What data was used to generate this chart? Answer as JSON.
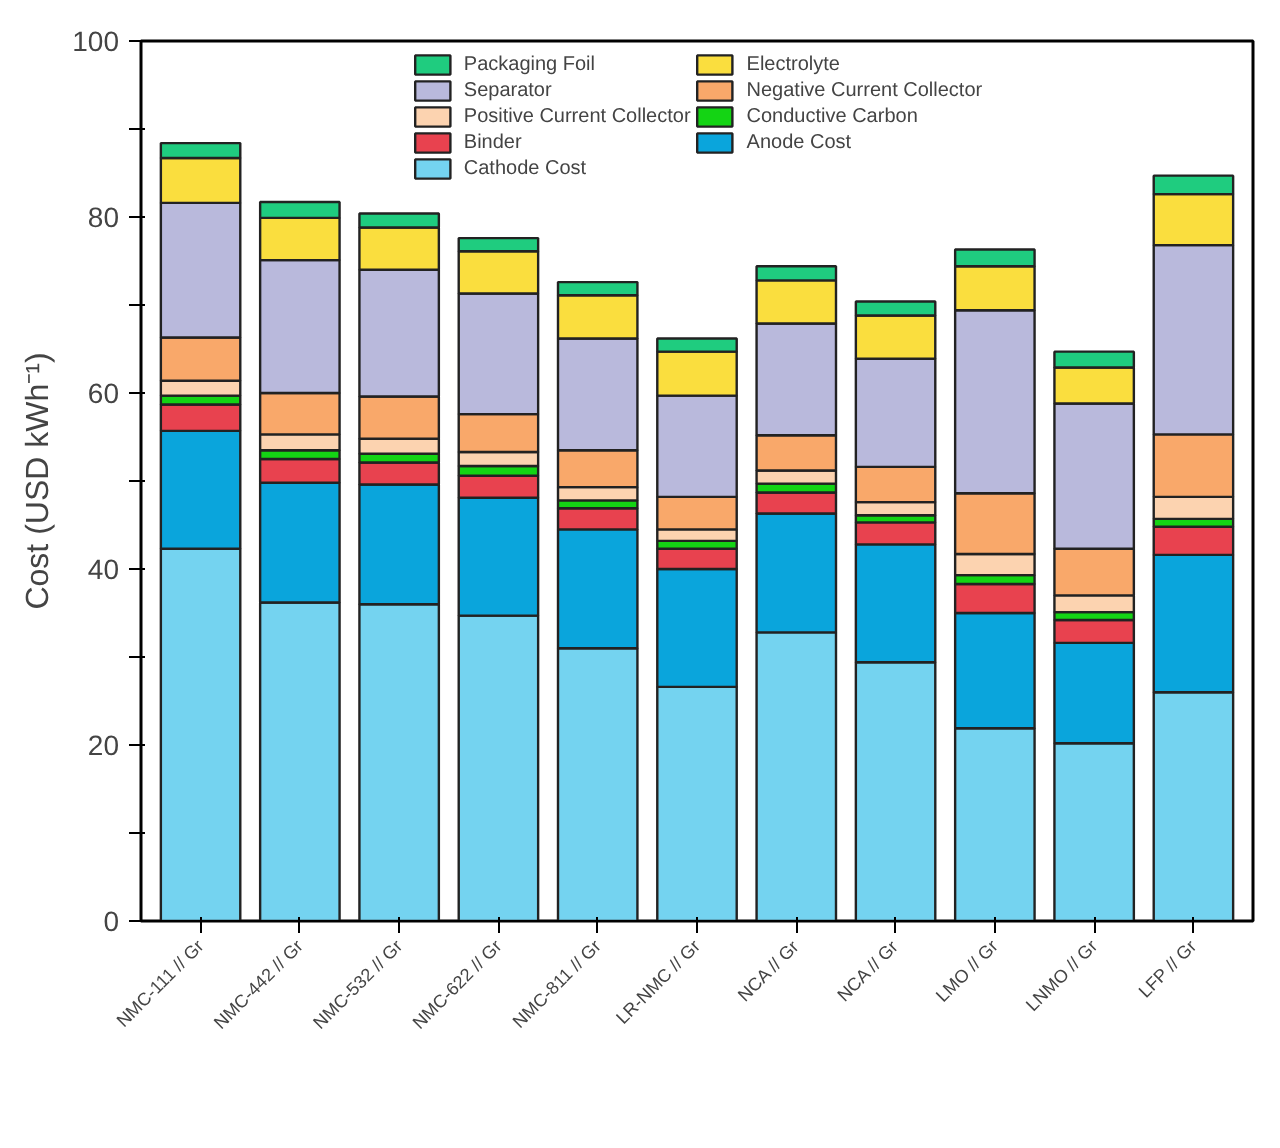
{
  "chart_data": {
    "type": "bar",
    "stacked": true,
    "ylabel": "Cost (USD kWh⁻¹)",
    "categories": [
      "NMC-111 // Gr",
      "NMC-442 // Gr",
      "NMC-532 // Gr",
      "NMC-622 // Gr",
      "NMC-811 // Gr",
      "LR-NMC // Gr",
      "NCA // Gr",
      "NCA // Gr",
      "LMO // Gr",
      "LNMO // Gr",
      "LFP // Gr"
    ],
    "series": [
      {
        "name": "Cathode Cost",
        "color": "#74d3f0",
        "values": [
          42.3,
          36.2,
          36.0,
          34.7,
          31.0,
          26.6,
          32.8,
          29.4,
          21.9,
          20.2,
          26.0
        ]
      },
      {
        "name": "Anode Cost",
        "color": "#0aa5dc",
        "values": [
          13.4,
          13.6,
          13.6,
          13.4,
          13.5,
          13.4,
          13.5,
          13.4,
          13.1,
          11.4,
          15.6
        ]
      },
      {
        "name": "Binder",
        "color": "#e8424f",
        "values": [
          3.0,
          2.7,
          2.5,
          2.5,
          2.4,
          2.3,
          2.4,
          2.5,
          3.3,
          2.6,
          3.2
        ]
      },
      {
        "name": "Conductive Carbon",
        "color": "#14d414",
        "values": [
          1.0,
          1.0,
          1.0,
          1.1,
          0.9,
          0.9,
          1.0,
          0.8,
          1.0,
          0.9,
          0.9
        ]
      },
      {
        "name": "Positive Current Collector",
        "color": "#fcd3b0",
        "values": [
          1.7,
          1.8,
          1.7,
          1.6,
          1.5,
          1.3,
          1.5,
          1.5,
          2.4,
          1.9,
          2.5
        ]
      },
      {
        "name": "Negative Current Collector",
        "color": "#f9a86a",
        "values": [
          4.9,
          4.7,
          4.8,
          4.3,
          4.2,
          3.7,
          4.0,
          4.0,
          6.9,
          5.3,
          7.1
        ]
      },
      {
        "name": "Separator",
        "color": "#b9b9dc",
        "values": [
          15.3,
          15.1,
          14.4,
          13.7,
          12.7,
          11.5,
          12.7,
          12.3,
          20.8,
          16.5,
          21.5
        ]
      },
      {
        "name": "Electrolyte",
        "color": "#fade3e",
        "values": [
          5.1,
          4.8,
          4.8,
          4.8,
          4.9,
          5.0,
          4.9,
          4.9,
          5.0,
          4.1,
          5.8
        ]
      },
      {
        "name": "Packaging Foil",
        "color": "#1fcc7f",
        "values": [
          1.7,
          1.8,
          1.6,
          1.5,
          1.5,
          1.5,
          1.6,
          1.6,
          1.9,
          1.8,
          2.1
        ]
      }
    ],
    "ylim": [
      0,
      100
    ],
    "yticks": [
      0,
      {
        "value": 10,
        "label": null
      },
      20,
      {
        "value": 30,
        "label": null
      },
      40,
      {
        "value": 50,
        "label": null
      },
      60,
      {
        "value": 70,
        "label": null
      },
      80,
      {
        "value": 90,
        "label": null
      },
      100
    ],
    "grid": false,
    "legend": "top"
  }
}
